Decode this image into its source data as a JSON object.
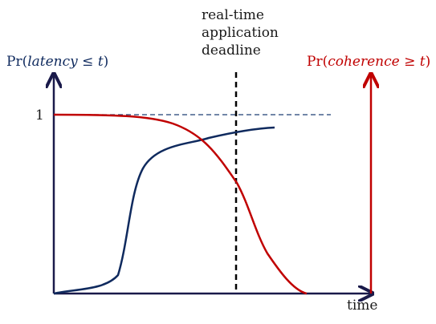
{
  "diagram": {
    "left_label": {
      "prefix": "Pr(",
      "var": "latency",
      "op": " ≤ ",
      "t": "t",
      "suffix": ")"
    },
    "right_label": {
      "prefix": "Pr(",
      "var": "coherence",
      "op": " ≥ ",
      "t": "t",
      "suffix": ")"
    },
    "deadline_label": {
      "line1": "real-time",
      "line2": "application",
      "line3": "deadline"
    },
    "one_label": "1",
    "time_label": "time",
    "colors": {
      "latency": "#0f2a5e",
      "coherence": "#c00000",
      "axis": "#1a1a4a",
      "reference": "#1f3f73",
      "deadline": "#000000",
      "text": "#1a1a1a"
    }
  }
}
